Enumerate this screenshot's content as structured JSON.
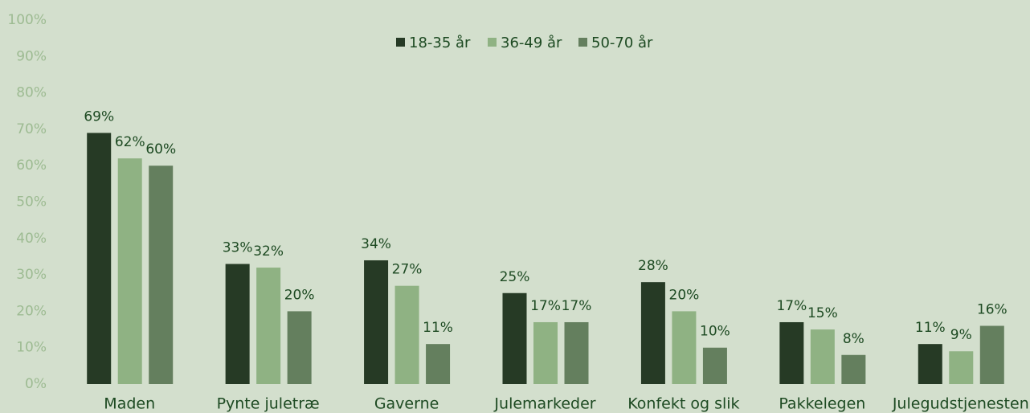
{
  "chart_data": {
    "type": "bar",
    "categories": [
      "Maden",
      "Pynte juletræ",
      "Gaverne",
      "Julemarkeder",
      "Konfekt og slik",
      "Pakkelegen",
      "Julegudstjenesten"
    ],
    "series": [
      {
        "name": "18-35 år",
        "color": "#263a25",
        "values": [
          69,
          33,
          34,
          25,
          28,
          17,
          11
        ],
        "value_labels": [
          "69%",
          "33%",
          "34%",
          "25%",
          "28%",
          "17%",
          "11%"
        ]
      },
      {
        "name": "36-49 år",
        "color": "#8fb283",
        "values": [
          62,
          32,
          27,
          17,
          20,
          15,
          9
        ],
        "value_labels": [
          "62%",
          "32%",
          "27%",
          "17%",
          "20%",
          "15%",
          "9%"
        ]
      },
      {
        "name": "50-70 år",
        "color": "#647f5e",
        "values": [
          60,
          20,
          11,
          17,
          10,
          8,
          16
        ],
        "value_labels": [
          "60%",
          "20%",
          "11%",
          "17%",
          "10%",
          "8%",
          "16%"
        ]
      }
    ],
    "ylim": [
      0,
      100
    ],
    "yticks": [
      {
        "value": 0,
        "label": "0%"
      },
      {
        "value": 10,
        "label": "10%"
      },
      {
        "value": 20,
        "label": "20%"
      },
      {
        "value": 30,
        "label": "30%"
      },
      {
        "value": 40,
        "label": "40%"
      },
      {
        "value": 50,
        "label": "50%"
      },
      {
        "value": 60,
        "label": "60%"
      },
      {
        "value": 70,
        "label": "70%"
      },
      {
        "value": 80,
        "label": "80%"
      },
      {
        "value": 90,
        "label": "90%"
      },
      {
        "value": 100,
        "label": "100%"
      }
    ],
    "legend": "top"
  }
}
